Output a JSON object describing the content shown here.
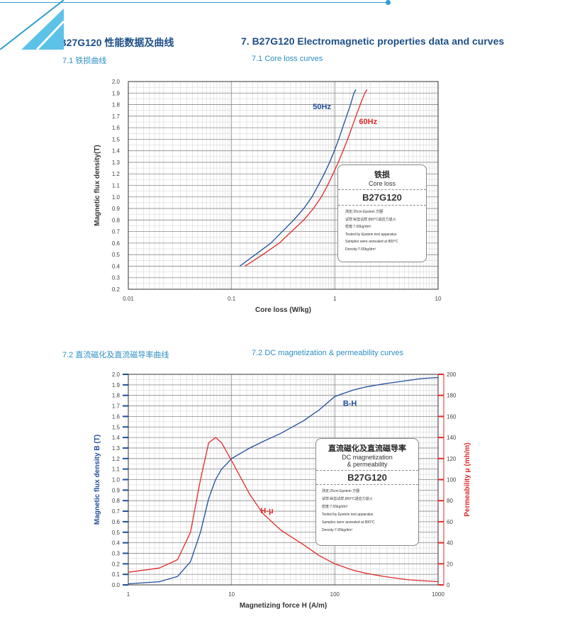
{
  "header": {
    "title_cn": "7. B27G120 性能数据及曲线",
    "title_en": "7. B27G120  Electromagnetic properties data and curves",
    "sec1_cn": "7.1 铁损曲线",
    "sec1_en": "7.1 Core loss curves",
    "sec2_cn": "7.2 直流磁化及直流磁导率曲线",
    "sec2_en": "7.2 DC magnetization & permeability curves"
  },
  "box1": {
    "title_cn": "铁损",
    "title_en": "Core loss",
    "grade": "B27G120",
    "notes": [
      "测定:25cm Epstein 方圈",
      "试样:纵剪试样,800°C退应力退火",
      "密度:7.65kg/dm³",
      "Tested by Epstein test apparatus",
      "Samples were annealed at 800°C",
      "Density:7.65kg/dm³"
    ]
  },
  "box2": {
    "title_cn": "直流磁化及直流磁导率",
    "title_en1": "DC magnetization",
    "title_en2": "& permeability",
    "grade": "B27G120",
    "notes": [
      "测定:25cm Epstein 方圈",
      "试样:纵剪试样,800°C退应力退火",
      "密度:7.65kg/dm³",
      "Tested by Epstein test apparatus",
      "Samples were annealed at 800°C",
      "Density:7.65kg/dm³"
    ]
  },
  "colors": {
    "blue": "#1f4e9a",
    "red": "#e02a2a",
    "accent": "#2d9fd0"
  },
  "chart_data": [
    {
      "type": "line",
      "xscale": "log",
      "xlabel": "Core loss (W/kg)",
      "ylabel": "Magnetic flux density(T)",
      "xlim": [
        0.01,
        10
      ],
      "ylim": [
        0.2,
        2.0
      ],
      "xticks": [
        "0.01",
        "0.1",
        "1",
        "10"
      ],
      "yticks": [
        "0.2",
        "0.3",
        "0.4",
        "0.5",
        "0.6",
        "0.7",
        "0.8",
        "0.9",
        "1.0",
        "1.1",
        "1.2",
        "1.3",
        "1.4",
        "1.5",
        "1.6",
        "1.7",
        "1.8",
        "1.9",
        "2.0"
      ],
      "grid": true,
      "series": [
        {
          "name": "50Hz",
          "color": "#1f4e9a",
          "label_x": 0.75,
          "label_y": 1.76,
          "points": [
            [
              0.12,
              0.4
            ],
            [
              0.17,
              0.5
            ],
            [
              0.24,
              0.6
            ],
            [
              0.31,
              0.7
            ],
            [
              0.4,
              0.8
            ],
            [
              0.5,
              0.9
            ],
            [
              0.6,
              1.0
            ],
            [
              0.69,
              1.1
            ],
            [
              0.79,
              1.2
            ],
            [
              0.89,
              1.3
            ],
            [
              0.99,
              1.4
            ],
            [
              1.09,
              1.5
            ],
            [
              1.19,
              1.6
            ],
            [
              1.3,
              1.7
            ],
            [
              1.42,
              1.8
            ],
            [
              1.53,
              1.9
            ],
            [
              1.6,
              1.93
            ]
          ]
        },
        {
          "name": "60Hz",
          "color": "#e02a2a",
          "label_x": 2.1,
          "label_y": 1.63,
          "points": [
            [
              0.135,
              0.4
            ],
            [
              0.2,
              0.5
            ],
            [
              0.29,
              0.6
            ],
            [
              0.38,
              0.7
            ],
            [
              0.5,
              0.8
            ],
            [
              0.62,
              0.9
            ],
            [
              0.74,
              1.0
            ],
            [
              0.85,
              1.1
            ],
            [
              0.96,
              1.2
            ],
            [
              1.08,
              1.3
            ],
            [
              1.2,
              1.4
            ],
            [
              1.33,
              1.5
            ],
            [
              1.46,
              1.6
            ],
            [
              1.6,
              1.7
            ],
            [
              1.76,
              1.8
            ],
            [
              1.95,
              1.9
            ],
            [
              2.05,
              1.93
            ]
          ]
        }
      ]
    },
    {
      "type": "line",
      "xscale": "log",
      "xlabel": "Magnetizing force H (A/m)",
      "ylabel": "Magnetic flux density B (T)",
      "y2label": "Permeability μ (mh/m)",
      "xlim": [
        1,
        1000
      ],
      "ylim": [
        0,
        2.0
      ],
      "y2lim": [
        0,
        200
      ],
      "xticks": [
        "1",
        "10",
        "100",
        "1000"
      ],
      "yticks": [
        "0.0",
        "0.1",
        "0.2",
        "0.3",
        "0.4",
        "0.5",
        "0.6",
        "0.7",
        "0.8",
        "0.9",
        "1.0",
        "1.1",
        "1.2",
        "1.3",
        "1.4",
        "1.5",
        "1.6",
        "1.7",
        "1.8",
        "1.9",
        "2.0"
      ],
      "y2ticks": [
        "0",
        "20",
        "40",
        "60",
        "80",
        "100",
        "120",
        "140",
        "160",
        "180",
        "200"
      ],
      "grid": true,
      "series": [
        {
          "name": "B-H",
          "axis": "left",
          "color": "#1f4e9a",
          "label_x": 140,
          "label_y": 1.7,
          "points": [
            [
              1,
              0.01
            ],
            [
              2,
              0.03
            ],
            [
              3,
              0.08
            ],
            [
              4,
              0.22
            ],
            [
              5,
              0.5
            ],
            [
              6,
              0.82
            ],
            [
              7,
              1.0
            ],
            [
              8,
              1.1
            ],
            [
              9,
              1.15
            ],
            [
              10,
              1.2
            ],
            [
              15,
              1.3
            ],
            [
              20,
              1.36
            ],
            [
              30,
              1.44
            ],
            [
              50,
              1.56
            ],
            [
              70,
              1.66
            ],
            [
              100,
              1.79
            ],
            [
              150,
              1.85
            ],
            [
              200,
              1.88
            ],
            [
              300,
              1.91
            ],
            [
              500,
              1.94
            ],
            [
              700,
              1.96
            ],
            [
              1000,
              1.97
            ]
          ]
        },
        {
          "name": "H-μ",
          "axis": "right",
          "color": "#e02a2a",
          "label_x": 22,
          "label_y": 68,
          "points": [
            [
              1,
              12
            ],
            [
              2,
              16
            ],
            [
              3,
              24
            ],
            [
              4,
              50
            ],
            [
              5,
              100
            ],
            [
              6,
              135
            ],
            [
              7,
              140
            ],
            [
              8,
              135
            ],
            [
              10,
              118
            ],
            [
              15,
              86
            ],
            [
              20,
              68
            ],
            [
              30,
              52
            ],
            [
              50,
              38
            ],
            [
              70,
              28
            ],
            [
              100,
              20
            ],
            [
              150,
              14
            ],
            [
              200,
              11
            ],
            [
              300,
              8
            ],
            [
              500,
              5
            ],
            [
              700,
              4
            ],
            [
              1000,
              3
            ]
          ]
        }
      ]
    }
  ]
}
